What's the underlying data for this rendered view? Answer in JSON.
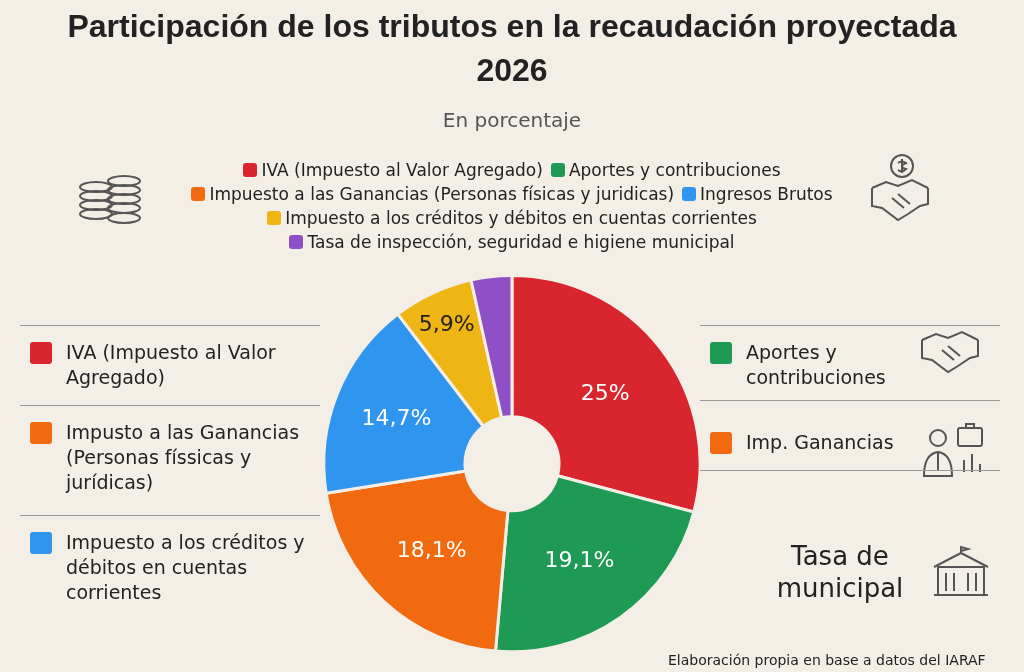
{
  "chart_data": {
    "type": "donut",
    "title": "Participación de los tributos en la recaudación proyectada 2026",
    "subtitle": "En porcentaje",
    "categories": [
      "IVA (Impuesto al Valor Agregado)",
      "Aportes y contribuciones",
      "Impuesto a las Ganancias (Personas físicas y juridicas)",
      "Ingresos Brutos",
      "Impuesto a los créditos y débitos en cuentas corrientes",
      "Tasa de inspección, seguridad e higiene municipal"
    ],
    "values": [
      25,
      19.1,
      18.1,
      14.7,
      5.9,
      3
    ],
    "value_labels": [
      "25%",
      "19,1%",
      "18,1%",
      "14,7%",
      "5,9%",
      null
    ],
    "colors": [
      "#d9262e",
      "#1e9a55",
      "#f26a0f",
      "#2f95ee",
      "#efb514",
      "#8e4fc7"
    ],
    "legend": "top",
    "annotations": [
      "IVA (Impuesto al Valor Agregado)",
      "Impusto a las Ganancias (Personas físsicas y jurídicas)",
      "Impuesto a los créditos y débitos en cuentas corrientes",
      "Aportes y contribuciones",
      "Imp. Ganancias",
      "Tasa de municipal",
      "Elaboración propia en base a datos del IARAF"
    ]
  }
}
